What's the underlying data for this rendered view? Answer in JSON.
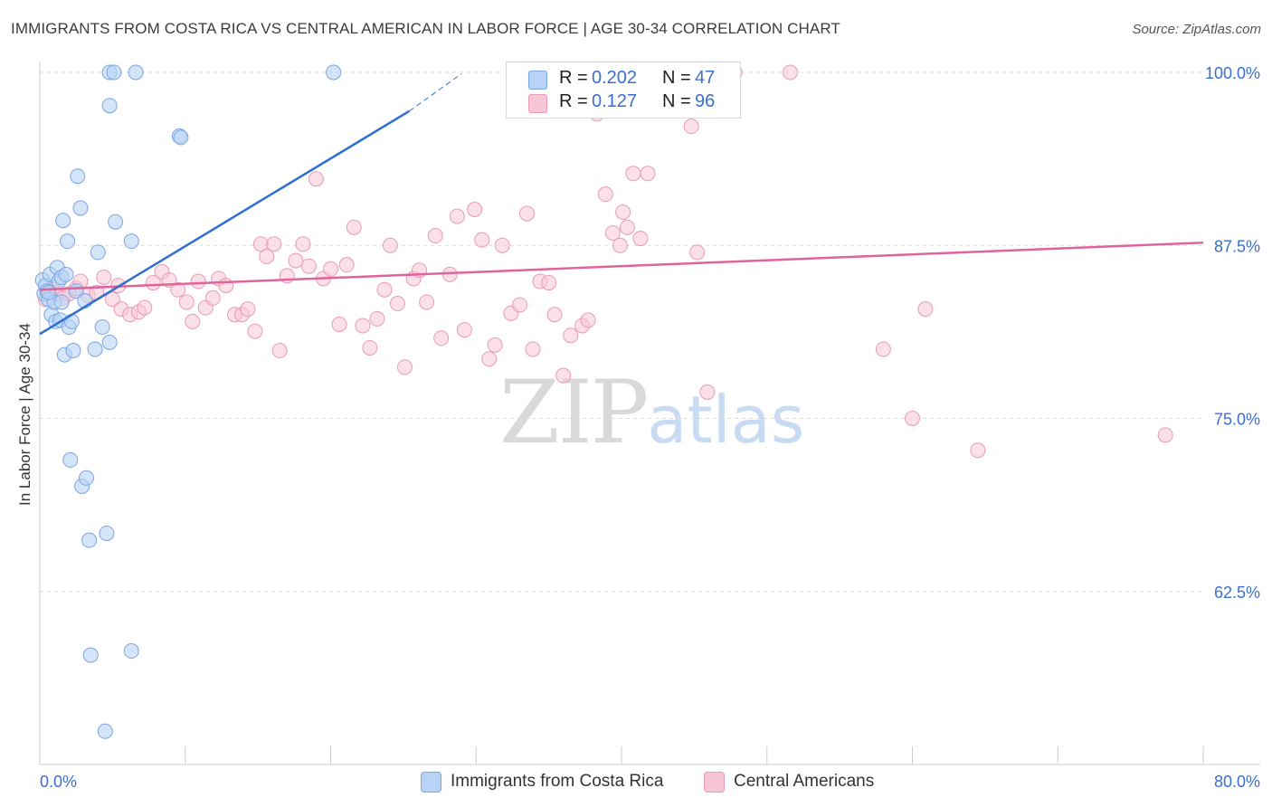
{
  "title": "IMMIGRANTS FROM COSTA RICA VS CENTRAL AMERICAN IN LABOR FORCE | AGE 30-34 CORRELATION CHART",
  "source": "Source: ZipAtlas.com",
  "watermark": {
    "zip": "ZIP",
    "atlas": "atlas"
  },
  "legend": {
    "r_label": "R =",
    "n_label": "N =",
    "series": [
      {
        "r": "0.202",
        "n": "47"
      },
      {
        "r": "0.127",
        "n": "96"
      }
    ]
  },
  "chart_data": {
    "type": "scatter",
    "title": "IMMIGRANTS FROM COSTA RICA VS CENTRAL AMERICAN IN LABOR FORCE | AGE 30-34 CORRELATION CHART",
    "xlabel": "",
    "ylabel": "In Labor Force | Age 30-34",
    "xlim": [
      0,
      80
    ],
    "ylim": [
      50,
      100
    ],
    "x_tick_labels": [
      "0.0%",
      "80.0%"
    ],
    "y_ticks": [
      62.5,
      75.0,
      87.5,
      100.0
    ],
    "y_tick_labels": [
      "62.5%",
      "75.0%",
      "87.5%",
      "100.0%"
    ],
    "grid": true,
    "legend_position": "top-center",
    "colors": {
      "series1_fill": "#b8d3f5",
      "series1_stroke": "#7aa6e3",
      "series1_line": "#2f6fd1",
      "series2_fill": "#f7c6d6",
      "series2_stroke": "#ea9ab7",
      "series2_line": "#e0649a",
      "axis_label": "#3a6fd0",
      "grid": "#dddddd"
    },
    "series": [
      {
        "name": "Immigrants from Costa Rica",
        "r": 0.202,
        "n": 47,
        "trend": {
          "x": [
            0,
            25.4
          ],
          "y": [
            81.1,
            97.2
          ]
        },
        "trend_dashed": {
          "x": [
            25.4,
            29.0
          ],
          "y": [
            97.2,
            99.9
          ]
        },
        "points": [
          [
            0.2,
            85.0
          ],
          [
            0.3,
            84.0
          ],
          [
            0.4,
            84.6
          ],
          [
            0.5,
            84.2
          ],
          [
            0.6,
            83.6
          ],
          [
            0.7,
            85.4
          ],
          [
            0.8,
            82.5
          ],
          [
            1.0,
            83.4
          ],
          [
            1.1,
            82.0
          ],
          [
            1.2,
            85.9
          ],
          [
            1.3,
            84.9
          ],
          [
            1.4,
            82.1
          ],
          [
            1.5,
            85.2
          ],
          [
            1.6,
            89.3
          ],
          [
            1.7,
            79.6
          ],
          [
            1.8,
            85.4
          ],
          [
            1.9,
            87.8
          ],
          [
            2.0,
            81.6
          ],
          [
            2.1,
            72.0
          ],
          [
            2.2,
            82.0
          ],
          [
            2.3,
            79.9
          ],
          [
            2.5,
            84.2
          ],
          [
            2.6,
            92.5
          ],
          [
            2.8,
            90.2
          ],
          [
            2.9,
            70.1
          ],
          [
            3.1,
            83.5
          ],
          [
            3.2,
            70.7
          ],
          [
            3.4,
            66.2
          ],
          [
            3.5,
            57.9
          ],
          [
            3.8,
            80.0
          ],
          [
            4.0,
            87.0
          ],
          [
            4.3,
            81.6
          ],
          [
            4.5,
            52.4
          ],
          [
            4.6,
            66.7
          ],
          [
            4.8,
            80.5
          ],
          [
            5.2,
            89.2
          ],
          [
            6.3,
            87.8
          ],
          [
            6.3,
            58.2
          ],
          [
            9.6,
            95.4
          ],
          [
            9.7,
            95.3
          ],
          [
            4.8,
            97.6
          ],
          [
            4.8,
            100.0
          ],
          [
            5.1,
            100.0
          ],
          [
            6.6,
            100.0
          ],
          [
            20.2,
            100.0
          ],
          [
            0.6,
            84.1
          ],
          [
            1.5,
            83.4
          ]
        ]
      },
      {
        "name": "Central Americans",
        "r": 0.127,
        "n": 96,
        "trend": {
          "x": [
            0,
            80
          ],
          "y": [
            84.3,
            87.7
          ]
        },
        "points": [
          [
            0.4,
            83.6
          ],
          [
            0.6,
            84.1
          ],
          [
            0.9,
            84.3
          ],
          [
            1.2,
            84.1
          ],
          [
            1.6,
            83.7
          ],
          [
            2.0,
            84.0
          ],
          [
            2.5,
            84.4
          ],
          [
            2.8,
            84.9
          ],
          [
            3.3,
            83.9
          ],
          [
            3.9,
            84.1
          ],
          [
            4.4,
            85.2
          ],
          [
            5.0,
            83.6
          ],
          [
            5.4,
            84.6
          ],
          [
            5.6,
            82.9
          ],
          [
            6.2,
            82.5
          ],
          [
            6.8,
            82.7
          ],
          [
            7.2,
            83.0
          ],
          [
            7.8,
            84.8
          ],
          [
            8.4,
            85.6
          ],
          [
            8.9,
            85.0
          ],
          [
            9.5,
            84.3
          ],
          [
            10.1,
            83.4
          ],
          [
            10.5,
            82.0
          ],
          [
            10.9,
            84.9
          ],
          [
            11.4,
            83.0
          ],
          [
            11.9,
            83.7
          ],
          [
            12.3,
            85.1
          ],
          [
            12.8,
            84.6
          ],
          [
            13.4,
            82.5
          ],
          [
            13.9,
            82.5
          ],
          [
            14.3,
            82.9
          ],
          [
            14.8,
            81.3
          ],
          [
            15.2,
            87.6
          ],
          [
            15.6,
            86.7
          ],
          [
            16.1,
            87.6
          ],
          [
            16.5,
            79.9
          ],
          [
            17.0,
            85.3
          ],
          [
            17.6,
            86.4
          ],
          [
            18.1,
            87.6
          ],
          [
            18.5,
            86.0
          ],
          [
            19.0,
            92.3
          ],
          [
            19.5,
            85.1
          ],
          [
            20.0,
            85.8
          ],
          [
            20.6,
            81.8
          ],
          [
            21.1,
            86.1
          ],
          [
            21.6,
            88.8
          ],
          [
            22.2,
            81.7
          ],
          [
            22.7,
            80.1
          ],
          [
            23.2,
            82.2
          ],
          [
            23.7,
            84.3
          ],
          [
            24.1,
            87.5
          ],
          [
            24.6,
            83.3
          ],
          [
            25.1,
            78.7
          ],
          [
            25.7,
            85.1
          ],
          [
            26.1,
            85.7
          ],
          [
            26.6,
            83.4
          ],
          [
            27.2,
            88.2
          ],
          [
            27.6,
            80.8
          ],
          [
            28.2,
            85.4
          ],
          [
            28.7,
            89.6
          ],
          [
            29.2,
            81.4
          ],
          [
            29.9,
            90.1
          ],
          [
            30.4,
            87.9
          ],
          [
            30.9,
            79.3
          ],
          [
            31.3,
            80.3
          ],
          [
            31.8,
            87.5
          ],
          [
            32.4,
            82.6
          ],
          [
            33.0,
            83.2
          ],
          [
            33.5,
            89.8
          ],
          [
            33.9,
            80.0
          ],
          [
            34.4,
            84.9
          ],
          [
            35.0,
            84.8
          ],
          [
            35.4,
            82.5
          ],
          [
            36.0,
            78.1
          ],
          [
            36.5,
            81.0
          ],
          [
            37.3,
            81.7
          ],
          [
            37.7,
            82.1
          ],
          [
            38.3,
            97.0
          ],
          [
            38.9,
            91.2
          ],
          [
            39.4,
            88.4
          ],
          [
            39.9,
            87.5
          ],
          [
            40.1,
            89.9
          ],
          [
            40.4,
            88.8
          ],
          [
            40.8,
            92.7
          ],
          [
            41.3,
            88.0
          ],
          [
            41.8,
            92.7
          ],
          [
            43.2,
            100.0
          ],
          [
            44.8,
            96.1
          ],
          [
            45.2,
            87.0
          ],
          [
            45.9,
            76.9
          ],
          [
            47.8,
            100.0
          ],
          [
            51.6,
            100.0
          ],
          [
            58.0,
            80.0
          ],
          [
            60.0,
            75.0
          ],
          [
            60.9,
            82.9
          ],
          [
            64.5,
            72.7
          ],
          [
            77.4,
            73.8
          ]
        ]
      }
    ]
  },
  "bottom_legend": [
    {
      "label": "Immigrants from Costa Rica"
    },
    {
      "label": "Central Americans"
    }
  ]
}
